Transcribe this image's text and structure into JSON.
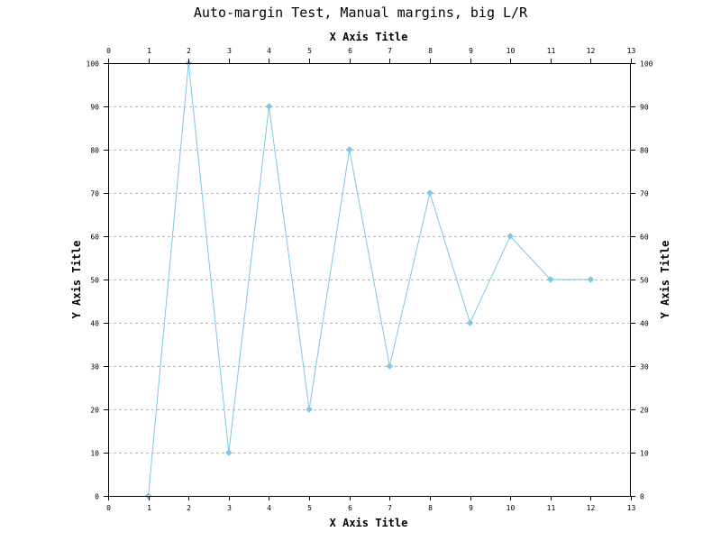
{
  "chart_data": {
    "type": "line",
    "title": "Auto-margin Test, Manual margins, big L/R",
    "xlabel": "X Axis Title",
    "x2label": "X Axis Title",
    "ylabel": "Y Axis Title",
    "y2label": "Y Axis Title",
    "xlim": [
      0,
      13
    ],
    "ylim": [
      0,
      100
    ],
    "x_ticks": [
      "0",
      "1",
      "2",
      "3",
      "4",
      "5",
      "6",
      "7",
      "8",
      "9",
      "10",
      "11",
      "12",
      "13"
    ],
    "y_ticks": [
      "0",
      "10",
      "20",
      "30",
      "40",
      "50",
      "60",
      "70",
      "80",
      "90",
      "100"
    ],
    "grid": "horizontal dashed",
    "legend": "none",
    "series": [
      {
        "color": "#7ec8e3",
        "marker": "diamond",
        "x": [
          1,
          2,
          3,
          4,
          5,
          6,
          7,
          8,
          9,
          10,
          11,
          12
        ],
        "y": [
          0,
          100,
          10,
          90,
          20,
          80,
          30,
          70,
          40,
          60,
          50,
          50
        ]
      }
    ]
  }
}
